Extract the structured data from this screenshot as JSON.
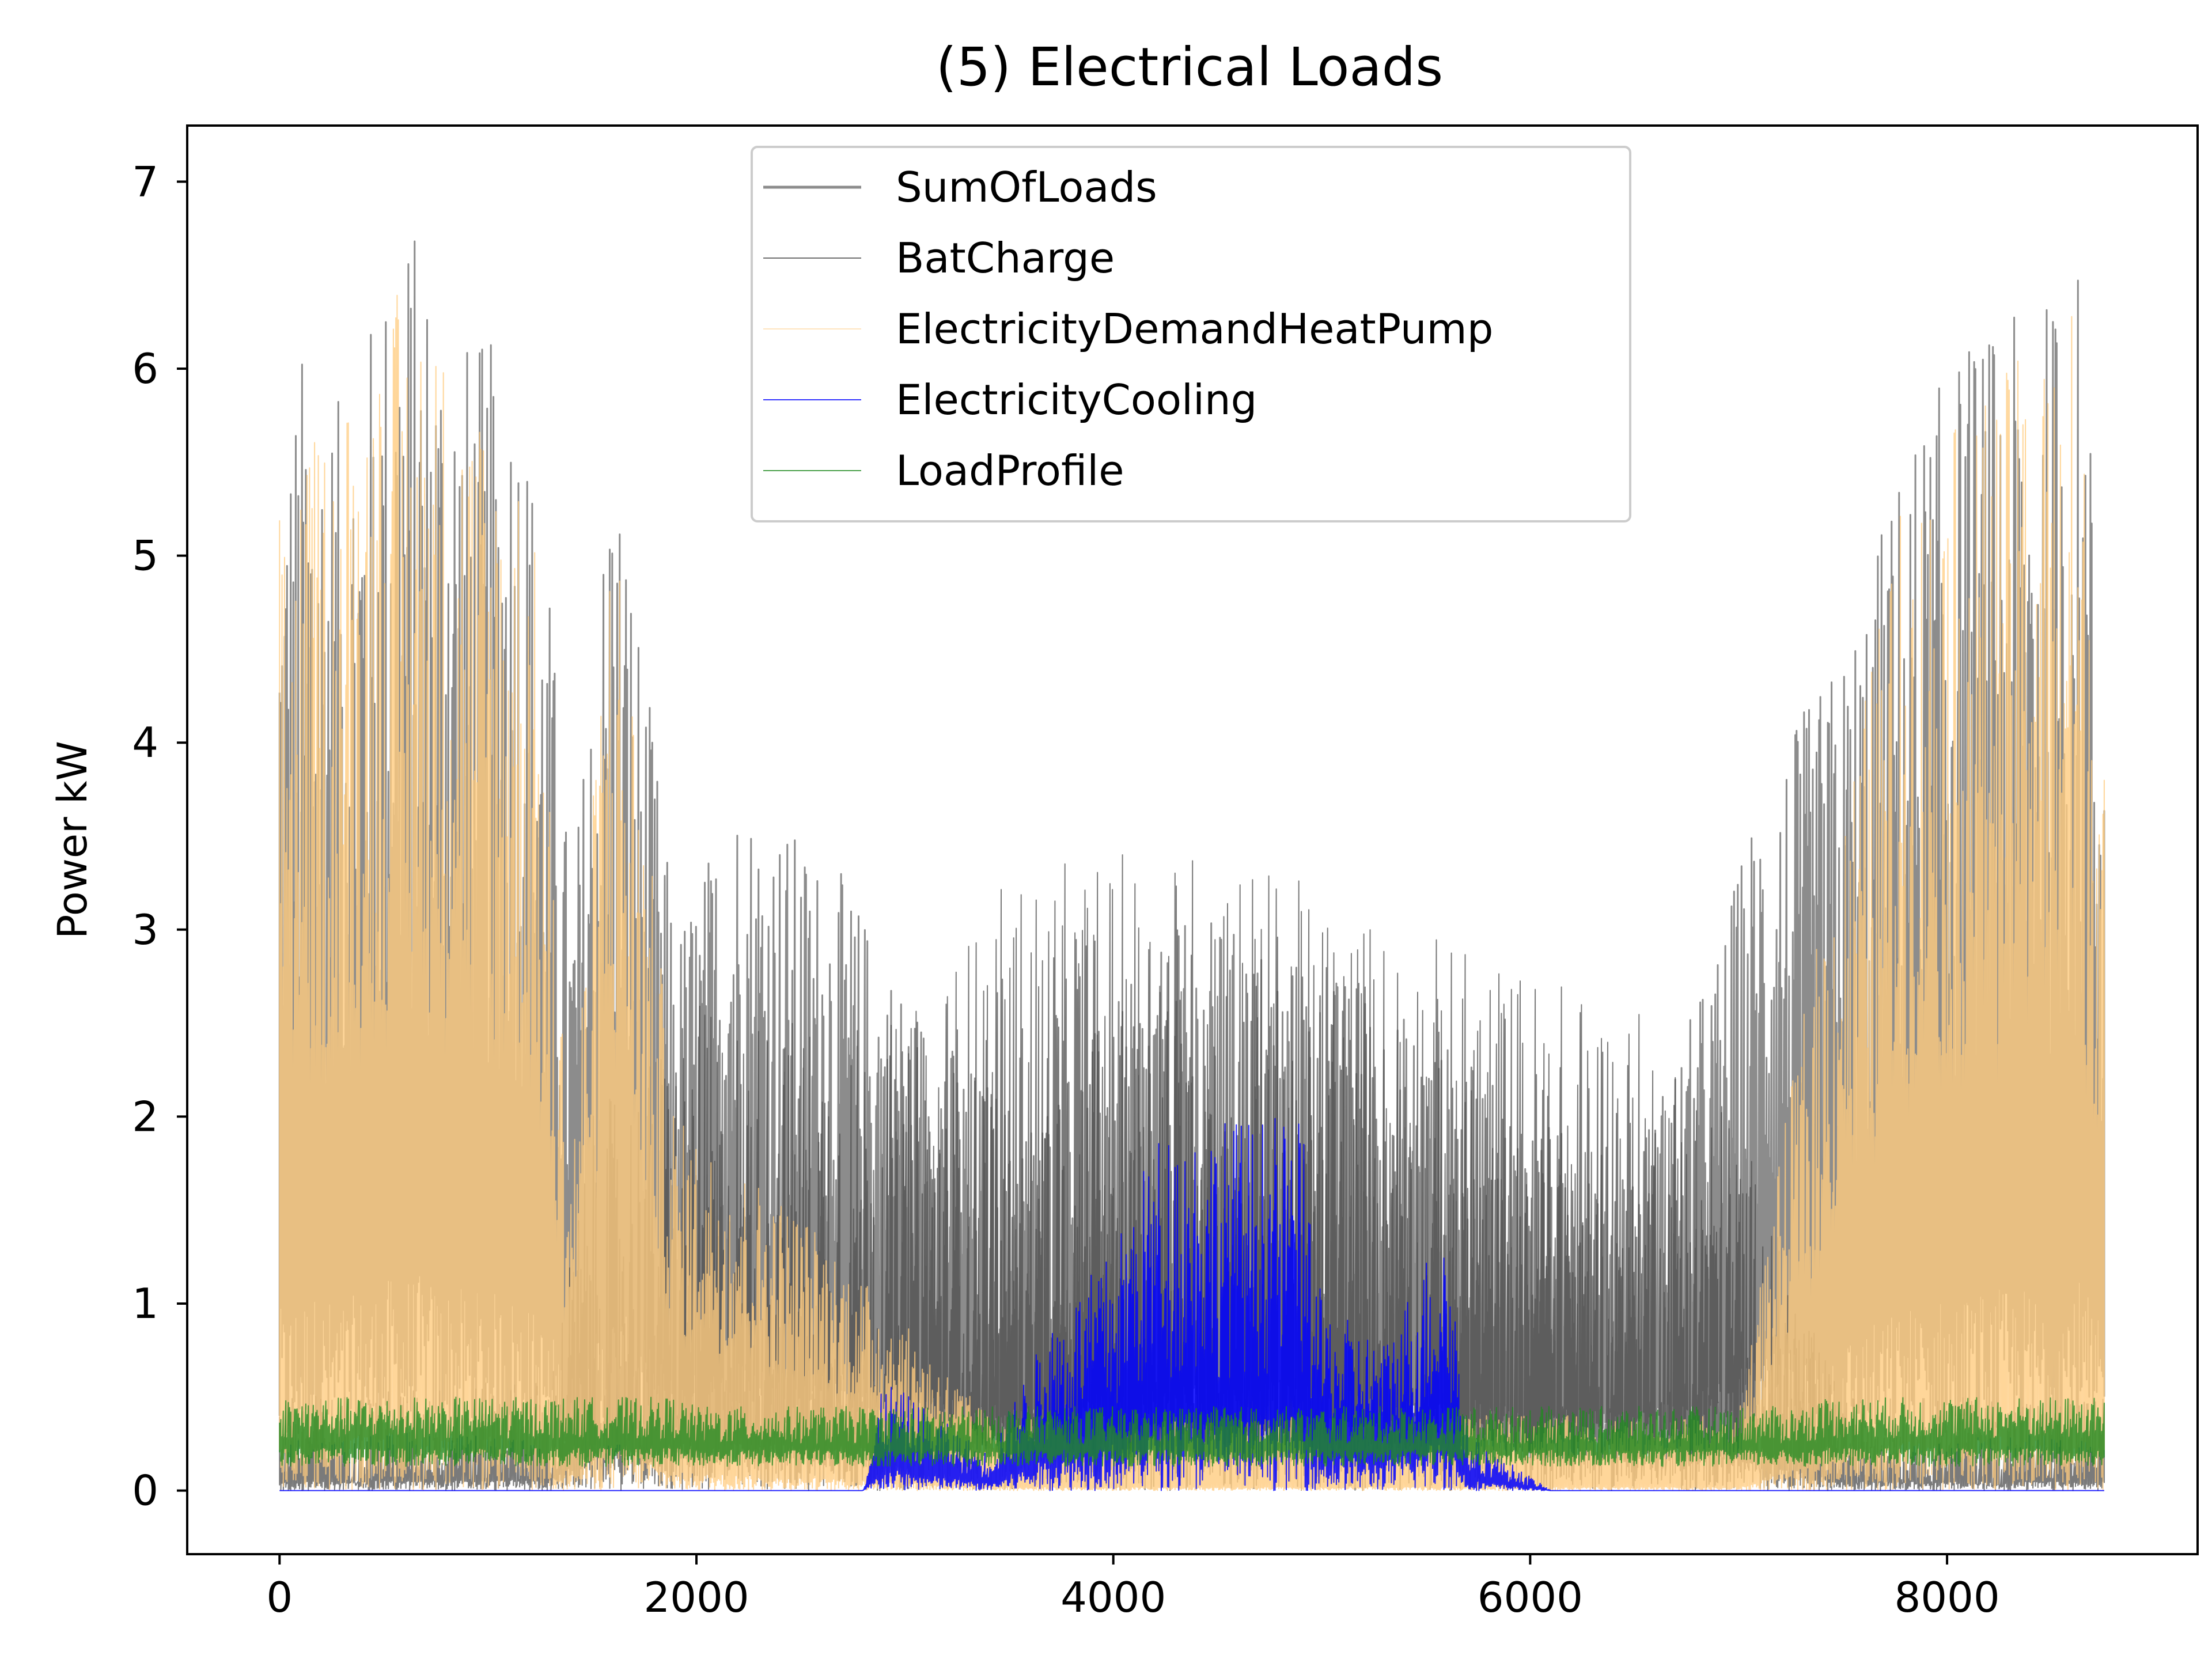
{
  "chart_data": {
    "type": "line",
    "title": "(5) Electrical Loads",
    "xlabel": "",
    "ylabel": "Power kW",
    "xlim": [
      -443,
      9202
    ],
    "ylim": [
      -0.34,
      7.3
    ],
    "xticks": [
      0,
      2000,
      4000,
      6000,
      8000
    ],
    "yticks": [
      0,
      1,
      2,
      3,
      4,
      5,
      6,
      7
    ],
    "grid": false,
    "legend_position": "top-center",
    "n_points": 8760,
    "series": [
      {
        "name": "SumOfLoads",
        "color": "#808080",
        "profile": [
          [
            0,
            5.5
          ],
          [
            120,
            6.2
          ],
          [
            300,
            5.8
          ],
          [
            600,
            6.9
          ],
          [
            900,
            6.2
          ],
          [
            1150,
            6.1
          ],
          [
            1300,
            4.8
          ],
          [
            1400,
            3.2
          ],
          [
            1600,
            5.8
          ],
          [
            1800,
            4.0
          ],
          [
            1900,
            3.0
          ],
          [
            2200,
            3.8
          ],
          [
            2700,
            3.3
          ],
          [
            3000,
            2.7
          ],
          [
            3300,
            2.3
          ],
          [
            3600,
            2.0
          ],
          [
            4000,
            2.6
          ],
          [
            4400,
            3.1
          ],
          [
            4800,
            2.9
          ],
          [
            5200,
            2.7
          ],
          [
            5600,
            2.4
          ],
          [
            6000,
            2.0
          ],
          [
            6500,
            1.8
          ],
          [
            6900,
            2.9
          ],
          [
            7100,
            3.8
          ],
          [
            7500,
            4.5
          ],
          [
            7800,
            5.6
          ],
          [
            8100,
            6.2
          ],
          [
            8400,
            6.3
          ],
          [
            8640,
            6.6
          ],
          [
            8760,
            4.5
          ]
        ]
      },
      {
        "name": "BatCharge",
        "color": "#4d4d4d",
        "profile": [
          [
            0,
            0.5
          ],
          [
            1300,
            0.6
          ],
          [
            1500,
            2.0
          ],
          [
            2000,
            2.6
          ],
          [
            3000,
            2.5
          ],
          [
            3500,
            3.3
          ],
          [
            4000,
            3.4
          ],
          [
            4500,
            3.5
          ],
          [
            5000,
            3.2
          ],
          [
            5500,
            3.0
          ],
          [
            6000,
            2.8
          ],
          [
            6500,
            2.6
          ],
          [
            7000,
            2.0
          ],
          [
            7300,
            1.0
          ],
          [
            7500,
            0.5
          ],
          [
            8760,
            0.5
          ]
        ]
      },
      {
        "name": "ElectricityDemandHeatPump",
        "color": "#ffcc80",
        "profile": [
          [
            0,
            5.3
          ],
          [
            600,
            6.5
          ],
          [
            1200,
            5.5
          ],
          [
            1400,
            1.8
          ],
          [
            1600,
            5.5
          ],
          [
            1900,
            2.0
          ],
          [
            2500,
            1.5
          ],
          [
            3400,
            0.4
          ],
          [
            7000,
            0.4
          ],
          [
            7300,
            2.5
          ],
          [
            7800,
            5.4
          ],
          [
            8600,
            6.4
          ],
          [
            8760,
            4.4
          ]
        ]
      },
      {
        "name": "ElectricityCooling",
        "color": "#0000ff",
        "profile": [
          [
            0,
            0
          ],
          [
            2800,
            0
          ],
          [
            2900,
            0.6
          ],
          [
            3400,
            0.2
          ],
          [
            3700,
            0.9
          ],
          [
            4000,
            1.3
          ],
          [
            4200,
            1.9
          ],
          [
            4300,
            2.0
          ],
          [
            4900,
            2.0
          ],
          [
            5000,
            1.0
          ],
          [
            5300,
            0.8
          ],
          [
            5600,
            1.5
          ],
          [
            5700,
            0.3
          ],
          [
            6100,
            0
          ],
          [
            8760,
            0
          ]
        ]
      },
      {
        "name": "LoadProfile",
        "color": "#228b22",
        "profile": [
          [
            0,
            0.5
          ],
          [
            1900,
            0.5
          ],
          [
            2000,
            0.45
          ],
          [
            7300,
            0.45
          ],
          [
            7400,
            0.5
          ],
          [
            8760,
            0.5
          ]
        ]
      }
    ]
  }
}
